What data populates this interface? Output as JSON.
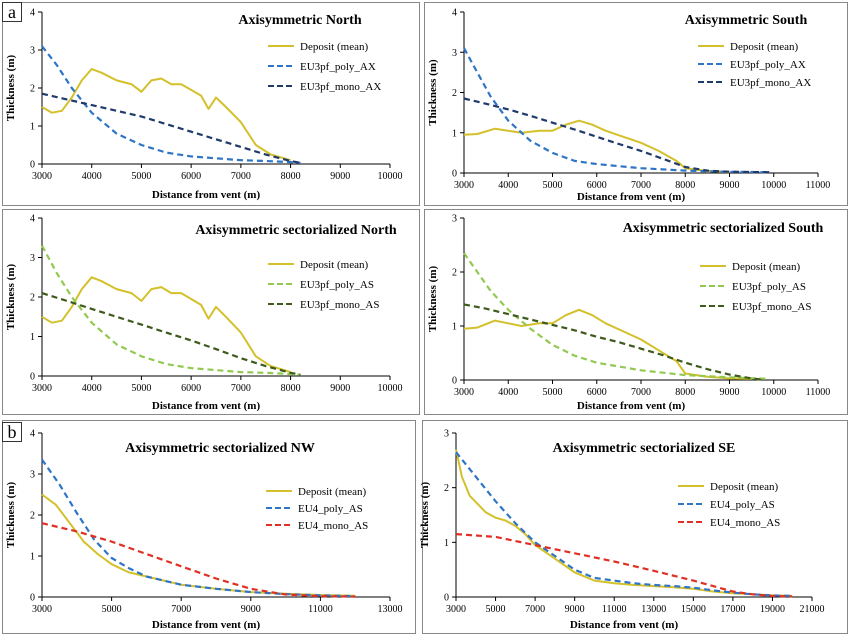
{
  "section_labels": [
    "a",
    "b"
  ],
  "colors": {
    "deposit": "#d4c02a",
    "blue": "#2e74c7",
    "navy": "#1f3a6b",
    "lightgreen": "#92c950",
    "darkgreen": "#3e5a1c",
    "red": "#e03024"
  },
  "chart_data": [
    {
      "type": "line",
      "title": "Axisymmetric  North",
      "xlabel": "Distance  from  vent  (m)",
      "ylabel": "Thickness  (m)",
      "xlim": [
        3000,
        10000
      ],
      "ylim": [
        0,
        4
      ],
      "xticks": [
        3000,
        4000,
        5000,
        6000,
        7000,
        8000,
        9000,
        10000
      ],
      "yticks": [
        0,
        1,
        2,
        3,
        4
      ],
      "series": [
        {
          "name": "Deposit (mean)",
          "color": "#d4c02a",
          "dash": "solid",
          "x": [
            3000,
            3200,
            3400,
            3600,
            3800,
            4000,
            4200,
            4500,
            4800,
            5000,
            5200,
            5400,
            5600,
            5800,
            6000,
            6200,
            6350,
            6500,
            6700,
            7000,
            7300,
            7600,
            8000
          ],
          "y": [
            1.5,
            1.35,
            1.4,
            1.75,
            2.2,
            2.5,
            2.4,
            2.2,
            2.1,
            1.9,
            2.2,
            2.25,
            2.1,
            2.1,
            1.95,
            1.8,
            1.45,
            1.75,
            1.5,
            1.1,
            0.5,
            0.25,
            0.1
          ]
        },
        {
          "name": "EU3pf_poly_AX",
          "color": "#2e74c7",
          "dash": "dashed",
          "x": [
            3000,
            3300,
            3600,
            4000,
            4500,
            5000,
            5500,
            6000,
            6500,
            7000,
            7500,
            8000,
            8200
          ],
          "y": [
            3.1,
            2.6,
            2.0,
            1.35,
            0.8,
            0.5,
            0.3,
            0.2,
            0.15,
            0.1,
            0.08,
            0.05,
            0.03
          ]
        },
        {
          "name": "EU3pf_mono_AX",
          "color": "#1f3a6b",
          "dash": "dashed",
          "x": [
            3000,
            3500,
            4000,
            4500,
            5000,
            5500,
            6000,
            6500,
            7000,
            7500,
            8000,
            8200
          ],
          "y": [
            1.85,
            1.7,
            1.55,
            1.4,
            1.25,
            1.05,
            0.85,
            0.65,
            0.45,
            0.25,
            0.08,
            0.03
          ]
        }
      ]
    },
    {
      "type": "line",
      "title": "Axisymmetric  South",
      "xlabel": "Distance  from  vent  (m)",
      "ylabel": "Thickness  (m)",
      "xlim": [
        3000,
        11000
      ],
      "ylim": [
        0,
        4
      ],
      "xticks": [
        3000,
        4000,
        5000,
        6000,
        7000,
        8000,
        9000,
        10000,
        11000
      ],
      "yticks": [
        0,
        1,
        2,
        3,
        4
      ],
      "series": [
        {
          "name": "Deposit (mean)",
          "color": "#d4c02a",
          "dash": "solid",
          "x": [
            3000,
            3300,
            3700,
            4000,
            4300,
            4700,
            5000,
            5300,
            5600,
            5900,
            6200,
            6600,
            7000,
            7400,
            7800,
            8000,
            8500,
            9000
          ],
          "y": [
            0.95,
            0.97,
            1.1,
            1.05,
            1.0,
            1.05,
            1.05,
            1.2,
            1.3,
            1.2,
            1.05,
            0.9,
            0.75,
            0.55,
            0.3,
            0.12,
            0.05,
            0.02
          ]
        },
        {
          "name": "EU3pf_poly_AX",
          "color": "#2e74c7",
          "dash": "dashed",
          "x": [
            3000,
            3300,
            3600,
            4000,
            4500,
            5000,
            5500,
            6000,
            7000,
            8000,
            9000,
            9900
          ],
          "y": [
            3.1,
            2.5,
            1.9,
            1.3,
            0.8,
            0.5,
            0.3,
            0.22,
            0.12,
            0.06,
            0.03,
            0.02
          ]
        },
        {
          "name": "EU3pf_mono_AX",
          "color": "#1f3a6b",
          "dash": "dashed",
          "x": [
            3000,
            3500,
            4000,
            4500,
            5000,
            5500,
            6000,
            6500,
            7000,
            7500,
            8000,
            8500,
            9000,
            9900
          ],
          "y": [
            1.85,
            1.72,
            1.58,
            1.42,
            1.25,
            1.08,
            0.9,
            0.72,
            0.55,
            0.35,
            0.15,
            0.06,
            0.03,
            0.02
          ]
        }
      ]
    },
    {
      "type": "line",
      "title": "Axisymmetric  sectorialized  North",
      "xlabel": "Distance  from  vent  (m)",
      "ylabel": "Thickness  (m)",
      "xlim": [
        3000,
        10000
      ],
      "ylim": [
        0,
        4
      ],
      "xticks": [
        3000,
        4000,
        5000,
        6000,
        7000,
        8000,
        9000,
        10000
      ],
      "yticks": [
        0,
        1,
        2,
        3,
        4
      ],
      "series": [
        {
          "name": "Deposit (mean)",
          "color": "#d4c02a",
          "dash": "solid",
          "x": [
            3000,
            3200,
            3400,
            3600,
            3800,
            4000,
            4200,
            4500,
            4800,
            5000,
            5200,
            5400,
            5600,
            5800,
            6000,
            6200,
            6350,
            6500,
            6700,
            7000,
            7300,
            7600,
            8000
          ],
          "y": [
            1.5,
            1.35,
            1.4,
            1.75,
            2.2,
            2.5,
            2.4,
            2.2,
            2.1,
            1.9,
            2.2,
            2.25,
            2.1,
            2.1,
            1.95,
            1.8,
            1.45,
            1.75,
            1.5,
            1.1,
            0.5,
            0.25,
            0.1
          ]
        },
        {
          "name": "EU3pf_poly_AS",
          "color": "#92c950",
          "dash": "dashed",
          "x": [
            3000,
            3300,
            3600,
            4000,
            4500,
            5000,
            5500,
            6000,
            6500,
            7000,
            7500,
            8000,
            8200
          ],
          "y": [
            3.3,
            2.6,
            2.0,
            1.35,
            0.8,
            0.5,
            0.3,
            0.2,
            0.15,
            0.1,
            0.08,
            0.05,
            0.03
          ]
        },
        {
          "name": "EU3pf_mono_AS",
          "color": "#3e5a1c",
          "dash": "dashed",
          "x": [
            3000,
            3500,
            4000,
            4500,
            5000,
            5500,
            6000,
            6500,
            7000,
            7500,
            8000,
            8200
          ],
          "y": [
            2.1,
            1.9,
            1.7,
            1.5,
            1.3,
            1.1,
            0.9,
            0.68,
            0.45,
            0.25,
            0.08,
            0.03
          ]
        }
      ]
    },
    {
      "type": "line",
      "title": "Axisymmetric  sectorialized  South",
      "xlabel": "Distance  from  vent  (m)",
      "ylabel": "Thickness  (m)",
      "xlim": [
        3000,
        11000
      ],
      "ylim": [
        0,
        3
      ],
      "xticks": [
        3000,
        4000,
        5000,
        6000,
        7000,
        8000,
        9000,
        10000,
        11000
      ],
      "yticks": [
        0,
        1,
        2,
        3
      ],
      "series": [
        {
          "name": "Deposit (mean)",
          "color": "#d4c02a",
          "dash": "solid",
          "x": [
            3000,
            3300,
            3700,
            4000,
            4300,
            4700,
            5000,
            5300,
            5600,
            5900,
            6200,
            6600,
            7000,
            7400,
            7800,
            8000,
            8500,
            9000,
            9500
          ],
          "y": [
            0.95,
            0.97,
            1.1,
            1.05,
            1.0,
            1.05,
            1.05,
            1.2,
            1.3,
            1.2,
            1.05,
            0.9,
            0.75,
            0.55,
            0.35,
            0.12,
            0.06,
            0.03,
            0.02
          ]
        },
        {
          "name": "EU3pf_poly_AS",
          "color": "#92c950",
          "dash": "dashed",
          "x": [
            3000,
            3300,
            3600,
            4000,
            4500,
            5000,
            5500,
            6000,
            7000,
            8000,
            9000,
            9900
          ],
          "y": [
            2.35,
            2.0,
            1.65,
            1.3,
            0.95,
            0.65,
            0.45,
            0.32,
            0.18,
            0.09,
            0.05,
            0.02
          ]
        },
        {
          "name": "EU3pf_mono_AS",
          "color": "#3e5a1c",
          "dash": "dashed",
          "x": [
            3000,
            3500,
            4000,
            4500,
            5000,
            5500,
            6000,
            6500,
            7000,
            7500,
            8000,
            8500,
            9000,
            9500,
            9700
          ],
          "y": [
            1.4,
            1.32,
            1.22,
            1.12,
            1.02,
            0.92,
            0.8,
            0.7,
            0.58,
            0.46,
            0.32,
            0.2,
            0.1,
            0.03,
            0.01
          ]
        }
      ]
    },
    {
      "type": "line",
      "title": "Axisymmetric  sectorialized  NW",
      "xlabel": "Distance  from  vent  (m)",
      "ylabel": "Thickness  (m)",
      "xlim": [
        3000,
        13000
      ],
      "ylim": [
        0,
        4
      ],
      "xticks": [
        3000,
        5000,
        7000,
        9000,
        11000,
        13000
      ],
      "yticks": [
        0,
        1,
        2,
        3,
        4
      ],
      "series": [
        {
          "name": "Deposit (mean)",
          "color": "#d4c02a",
          "dash": "solid",
          "x": [
            3000,
            3400,
            3800,
            4200,
            4600,
            5000,
            5500,
            6000,
            6500,
            7000,
            8000,
            9000,
            10000,
            11000,
            12000
          ],
          "y": [
            2.5,
            2.25,
            1.8,
            1.35,
            1.05,
            0.8,
            0.6,
            0.5,
            0.4,
            0.3,
            0.2,
            0.12,
            0.08,
            0.05,
            0.03
          ]
        },
        {
          "name": "EU4_poly_AS",
          "color": "#2e74c7",
          "dash": "dashed",
          "x": [
            3000,
            3500,
            4000,
            4500,
            5000,
            5500,
            6000,
            7000,
            8000,
            9000,
            10000,
            11000,
            12000
          ],
          "y": [
            3.35,
            2.75,
            2.05,
            1.4,
            0.95,
            0.7,
            0.5,
            0.3,
            0.2,
            0.12,
            0.07,
            0.04,
            0.02
          ]
        },
        {
          "name": "EU4_mono_AS",
          "color": "#e03024",
          "dash": "dashed",
          "x": [
            3000,
            4000,
            5000,
            6000,
            7000,
            8000,
            9000,
            10000,
            11000,
            12000
          ],
          "y": [
            1.8,
            1.6,
            1.35,
            1.05,
            0.75,
            0.45,
            0.2,
            0.06,
            0.02,
            0.01
          ]
        }
      ]
    },
    {
      "type": "line",
      "title": "Axisymmetric  sectorialized  SE",
      "xlabel": "Distance  from  vent  (m)",
      "ylabel": "Thickness  (m)",
      "xlim": [
        3000,
        21000
      ],
      "ylim": [
        0,
        3
      ],
      "xticks": [
        3000,
        5000,
        7000,
        9000,
        11000,
        13000,
        15000,
        17000,
        19000,
        21000
      ],
      "yticks": [
        0,
        1,
        2,
        3
      ],
      "series": [
        {
          "name": "Deposit (mean)",
          "color": "#d4c02a",
          "dash": "solid",
          "x": [
            3000,
            3300,
            3700,
            4100,
            4500,
            5000,
            5500,
            6000,
            6500,
            7000,
            8000,
            9000,
            10000,
            11000,
            12000,
            13000,
            14000,
            15000,
            16000,
            17000,
            18000,
            19000,
            20000
          ],
          "y": [
            2.7,
            2.2,
            1.85,
            1.7,
            1.55,
            1.45,
            1.4,
            1.3,
            1.15,
            0.95,
            0.7,
            0.45,
            0.3,
            0.25,
            0.22,
            0.2,
            0.18,
            0.15,
            0.1,
            0.07,
            0.05,
            0.03,
            0.02
          ]
        },
        {
          "name": "EU4_poly_AS",
          "color": "#2e74c7",
          "dash": "dashed",
          "x": [
            3000,
            4000,
            5000,
            6000,
            7000,
            8000,
            9000,
            10000,
            11000,
            12000,
            13000,
            14000,
            15000,
            16000,
            17000,
            18000,
            19000,
            20000
          ],
          "y": [
            2.65,
            2.2,
            1.75,
            1.35,
            1.0,
            0.75,
            0.5,
            0.35,
            0.3,
            0.25,
            0.22,
            0.2,
            0.17,
            0.12,
            0.08,
            0.05,
            0.03,
            0.02
          ]
        },
        {
          "name": "EU4_mono_AS",
          "color": "#e03024",
          "dash": "dashed",
          "x": [
            3000,
            5000,
            7000,
            9000,
            11000,
            13000,
            15000,
            16000,
            17000,
            18000,
            19000,
            20000
          ],
          "y": [
            1.15,
            1.1,
            0.95,
            0.8,
            0.65,
            0.48,
            0.3,
            0.2,
            0.1,
            0.05,
            0.02,
            0.01
          ]
        }
      ]
    }
  ]
}
